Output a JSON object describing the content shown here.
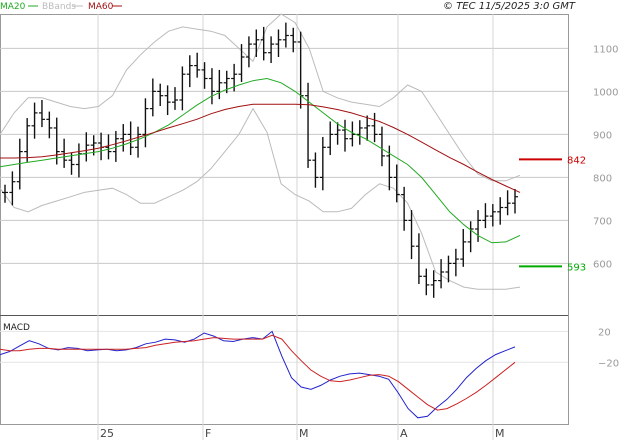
{
  "header": {
    "legend": [
      {
        "label": "MA20",
        "color": "#22aa22"
      },
      {
        "label": "BBands",
        "color": "#bbbbbb"
      },
      {
        "label": "MA60",
        "color": "#a01010"
      }
    ],
    "source": "© TEC 11/5/2025 3:0 GMT"
  },
  "macd_panel": {
    "title": "MACD"
  },
  "chart_data": [
    {
      "type": "ohlc",
      "title": "",
      "y_ticks": [
        600,
        700,
        800,
        900,
        1000,
        1100
      ],
      "ylim": [
        480,
        1180
      ],
      "x_labels": [
        "25",
        "F",
        "M",
        "A",
        "M"
      ],
      "grid": true,
      "levels": [
        {
          "value": 842,
          "label": "842",
          "color": "#cc0000"
        },
        {
          "value": 593,
          "label": "593",
          "color": "#00aa00"
        }
      ],
      "closes": [
        765,
        790,
        860,
        920,
        950,
        935,
        915,
        860,
        840,
        830,
        855,
        875,
        880,
        870,
        860,
        890,
        900,
        870,
        900,
        960,
        1000,
        990,
        975,
        980,
        1040,
        1060,
        1050,
        1030,
        1000,
        1020,
        1030,
        1040,
        1080,
        1110,
        1120,
        1090,
        1110,
        1120,
        1130,
        1115,
        990,
        840,
        800,
        870,
        900,
        910,
        890,
        900,
        915,
        920,
        900,
        850,
        800,
        760,
        700,
        640,
        570,
        550,
        560,
        580,
        600,
        610,
        650,
        680,
        700,
        710,
        720,
        730,
        740,
        755
      ],
      "series": [
        {
          "name": "MA20",
          "color": "#22aa22",
          "values": [
            825,
            830,
            835,
            840,
            845,
            850,
            855,
            860,
            868,
            878,
            890,
            905,
            922,
            945,
            968,
            988,
            1003,
            1015,
            1025,
            1030,
            1020,
            1000,
            975,
            950,
            925,
            905,
            890,
            870,
            850,
            830,
            800,
            760,
            720,
            690,
            665,
            648,
            650,
            665
          ]
        },
        {
          "name": "MA60",
          "color": "#a01010",
          "values": [
            845,
            845,
            846,
            848,
            852,
            857,
            862,
            868,
            876,
            885,
            895,
            905,
            915,
            925,
            935,
            948,
            958,
            965,
            970,
            970,
            970,
            970,
            969,
            964,
            958,
            950,
            940,
            930,
            916,
            900,
            882,
            864,
            846,
            830,
            812,
            795,
            780,
            765
          ]
        },
        {
          "name": "BBands upper",
          "color": "#bbbbbb",
          "values": [
            900,
            950,
            985,
            985,
            975,
            965,
            960,
            965,
            990,
            1050,
            1085,
            1115,
            1140,
            1150,
            1145,
            1140,
            1130,
            1100,
            1070,
            1150,
            1180,
            1160,
            1100,
            1000,
            985,
            975,
            970,
            965,
            985,
            1015,
            1000,
            950,
            900,
            850,
            808,
            792,
            792,
            805
          ]
        },
        {
          "name": "BBands lower",
          "color": "#bbbbbb",
          "values": [
            775,
            730,
            720,
            735,
            745,
            755,
            765,
            770,
            775,
            760,
            740,
            740,
            755,
            770,
            790,
            820,
            860,
            900,
            960,
            905,
            785,
            760,
            745,
            720,
            720,
            728,
            760,
            785,
            775,
            740,
            670,
            580,
            560,
            545,
            540,
            540,
            540,
            545
          ]
        }
      ]
    },
    {
      "type": "line",
      "title": "MACD",
      "y_ticks": [
        20,
        -20
      ],
      "ylim": [
        -100,
        40
      ],
      "series": [
        {
          "name": "MACD",
          "color": "#2222cc",
          "values": [
            -10,
            -6,
            1,
            8,
            4,
            -2,
            -4,
            -1,
            -2,
            -5,
            -4,
            -3,
            -5,
            -4,
            -1,
            4,
            6,
            10,
            9,
            6,
            10,
            18,
            14,
            8,
            7,
            10,
            12,
            10,
            20,
            -12,
            -40,
            -52,
            -55,
            -50,
            -43,
            -38,
            -35,
            -34,
            -36,
            -38,
            -42,
            -60,
            -80,
            -92,
            -90,
            -78,
            -68,
            -55,
            -40,
            -28,
            -18,
            -10,
            -5,
            0
          ]
        },
        {
          "name": "Signal",
          "color": "#cc2222",
          "values": [
            -3,
            -5,
            -5,
            -3,
            -2,
            -2,
            -3,
            -3,
            -3,
            -3,
            -3,
            -3,
            -3,
            -3,
            -2,
            -1,
            2,
            4,
            6,
            7,
            8,
            10,
            12,
            11,
            10,
            10,
            10,
            10,
            15,
            10,
            -5,
            -18,
            -30,
            -38,
            -44,
            -45,
            -43,
            -40,
            -37,
            -36,
            -38,
            -45,
            -55,
            -65,
            -75,
            -82,
            -80,
            -74,
            -67,
            -59,
            -50,
            -40,
            -30,
            -20
          ]
        }
      ]
    }
  ]
}
